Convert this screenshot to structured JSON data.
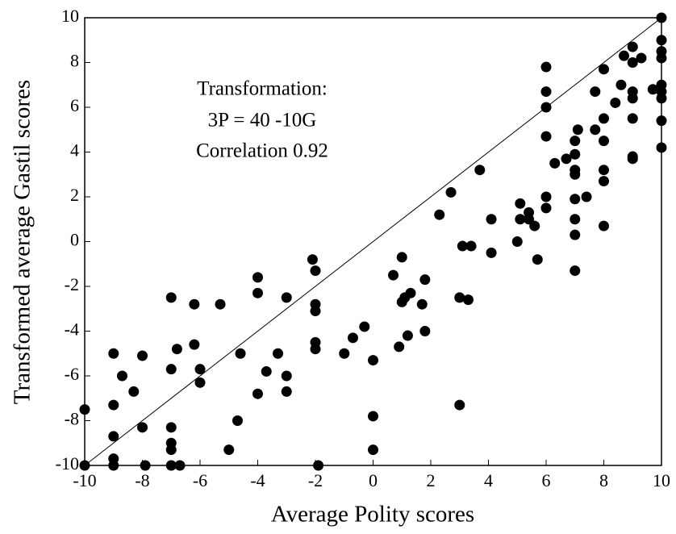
{
  "chart_data": {
    "type": "scatter",
    "x_label": "Average Polity scores",
    "y_label": "Transformed average Gastil scores",
    "annotations": [
      "Transformation:",
      "3P = 40 -10G",
      "Correlation 0.92"
    ],
    "color": "#000000",
    "xlim": [
      -10,
      10
    ],
    "ylim": [
      -10,
      10
    ],
    "xticks": [
      -10,
      -8,
      -6,
      -4,
      -2,
      0,
      2,
      4,
      6,
      8,
      10
    ],
    "yticks": [
      -10,
      -8,
      -6,
      -4,
      -2,
      0,
      2,
      4,
      6,
      8,
      10
    ],
    "x": [
      -10,
      -10,
      -9,
      -9,
      -9,
      -9,
      -9,
      -8.7,
      -8.3,
      -8,
      -8,
      -7.9,
      -7,
      -7,
      -7,
      -7,
      -7,
      -7,
      -6.8,
      -6.7,
      -6.2,
      -6.2,
      -6,
      -6,
      -5.3,
      -5,
      -4.7,
      -4.6,
      -4,
      -4,
      -4,
      -3.7,
      -3.3,
      -3,
      -3,
      -3,
      -2.1,
      -2,
      -2,
      -2,
      -2,
      -2,
      -1.9,
      -1,
      -0.7,
      -0.3,
      0,
      0,
      0,
      0.7,
      0.9,
      1,
      1,
      1.1,
      1.2,
      1.3,
      1.7,
      1.8,
      1.8,
      2.3,
      2.7,
      3,
      3,
      3.1,
      3.3,
      3.4,
      3.7,
      4.1,
      4.1,
      5,
      5.1,
      5.1,
      5.4,
      5.4,
      5.6,
      5.7,
      6,
      6,
      6,
      6,
      6,
      6,
      6.3,
      6.7,
      7,
      7,
      7,
      7,
      7,
      7,
      7,
      7,
      7.1,
      7.4,
      7.7,
      7.7,
      8,
      8,
      8,
      8,
      8,
      8,
      8.4,
      8.6,
      8.7,
      9,
      9,
      9,
      9,
      9,
      9,
      9,
      9.3,
      9.7,
      10,
      10,
      10,
      10,
      10,
      10,
      10,
      10,
      10
    ],
    "y": [
      -7.5,
      -10,
      -5,
      -7.3,
      -8.7,
      -9.7,
      -10,
      -6,
      -6.7,
      -5.1,
      -8.3,
      -10,
      -2.5,
      -5.7,
      -8.3,
      -9,
      -9.3,
      -10,
      -4.8,
      -10,
      -2.8,
      -4.6,
      -5.7,
      -6.3,
      -2.8,
      -9.3,
      -8,
      -5,
      -1.6,
      -2.3,
      -6.8,
      -5.8,
      -5,
      -2.5,
      -6,
      -6.7,
      -0.8,
      -1.3,
      -2.8,
      -3.1,
      -4.5,
      -4.8,
      -10,
      -5,
      -4.3,
      -3.8,
      -5.3,
      -7.8,
      -9.3,
      -1.5,
      -4.7,
      -0.7,
      -2.7,
      -2.5,
      -4.2,
      -2.3,
      -2.8,
      -1.7,
      -4,
      1.2,
      2.2,
      -2.5,
      -7.3,
      -0.2,
      -2.6,
      -0.2,
      3.2,
      1,
      -0.5,
      0,
      1.7,
      1,
      1.3,
      1,
      0.7,
      -0.8,
      7.8,
      6.7,
      6,
      4.7,
      2,
      1.5,
      3.5,
      3.7,
      4.5,
      3.9,
      3.2,
      3,
      1.9,
      1,
      0.3,
      -1.3,
      5,
      2,
      6.7,
      5,
      7.7,
      5.5,
      4.5,
      3.2,
      2.7,
      0.7,
      6.2,
      7,
      8.3,
      8.7,
      8,
      6.7,
      6.4,
      5.5,
      3.8,
      3.7,
      8.2,
      6.8,
      10,
      9,
      8.5,
      8.2,
      7,
      6.7,
      6.4,
      5.4,
      4.2
    ]
  }
}
